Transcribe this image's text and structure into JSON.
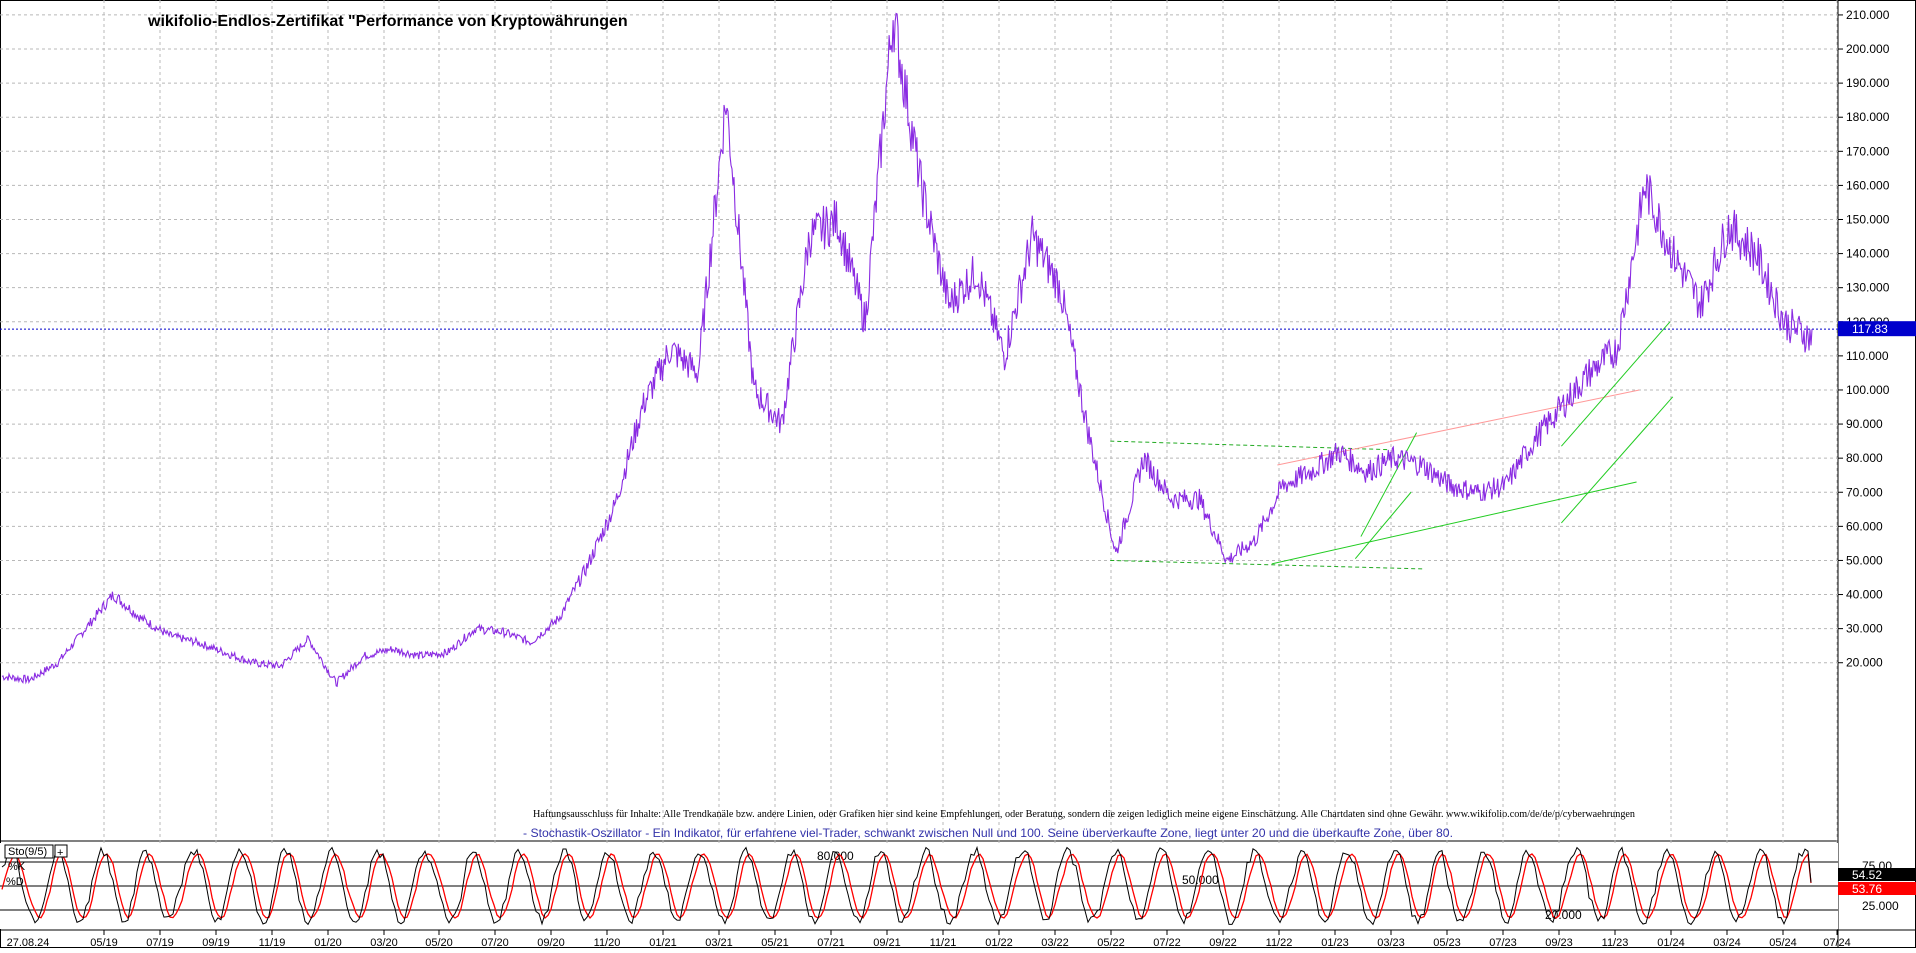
{
  "chart_data": [
    {
      "type": "line",
      "title": "wikifolio-Endlos-Zertifikat \"Performance von Kryptowährungen",
      "xlabel": "",
      "ylabel": "",
      "x_tick_labels": [
        "27.08.24",
        "05/19",
        "07/19",
        "09/19",
        "11/19",
        "01/20",
        "03/20",
        "05/20",
        "07/20",
        "09/20",
        "11/20",
        "01/21",
        "03/21",
        "05/21",
        "07/21",
        "09/21",
        "11/21",
        "01/22",
        "03/22",
        "05/22",
        "07/22",
        "09/22",
        "11/22",
        "01/23",
        "03/23",
        "05/23",
        "07/23",
        "09/23",
        "11/23",
        "01/24",
        "03/24",
        "05/24",
        "07/24"
      ],
      "y_tick_labels": [
        "20.000",
        "30.000",
        "40.000",
        "50.000",
        "60.000",
        "70.000",
        "80.000",
        "90.000",
        "100.000",
        "110.000",
        "120.000",
        "130.000",
        "140.000",
        "150.000",
        "160.000",
        "170.000",
        "180.000",
        "190.000",
        "200.000",
        "210.000"
      ],
      "ylim": [
        12,
        213.5
      ],
      "grid": true,
      "series_color": "#8a2be2",
      "current_value_label": "117.83",
      "current_value": 117.83,
      "x": [
        "03/19",
        "04/19",
        "05/19",
        "06/19",
        "07/19",
        "08/19",
        "09/19",
        "10/19",
        "11/19",
        "12/19",
        "01/20",
        "02/20",
        "03/20",
        "04/20",
        "05/20",
        "06/20",
        "07/20",
        "08/20",
        "09/20",
        "10/20",
        "11/20",
        "12/20",
        "01/21",
        "02/21",
        "03/21",
        "04/21",
        "05/21",
        "06/21",
        "07/21",
        "08/21",
        "09/21",
        "10/21",
        "11/21",
        "12/21",
        "01/22",
        "02/22",
        "03/22",
        "04/22",
        "05/22",
        "06/22",
        "07/22",
        "08/22",
        "09/22",
        "10/22",
        "11/22",
        "12/22",
        "01/23",
        "02/23",
        "03/23",
        "04/23",
        "05/23",
        "06/23",
        "07/23",
        "08/23",
        "09/23",
        "10/23",
        "11/23",
        "12/23",
        "01/24",
        "02/24",
        "03/24",
        "04/24",
        "05/24",
        "06/24",
        "07/24",
        "08/24"
      ],
      "series": [
        {
          "values": [
            16,
            15,
            20,
            30,
            40,
            33,
            28,
            26,
            23,
            20,
            19,
            27,
            14,
            22,
            24,
            22,
            23,
            30,
            29,
            26,
            33,
            48,
            66,
            95,
            112,
            105,
            185,
            100,
            90,
            145,
            150,
            120,
            210,
            160,
            125,
            135,
            110,
            145,
            130,
            88,
            52,
            80,
            68,
            68,
            50,
            56,
            72,
            76,
            82,
            76,
            80,
            78,
            72,
            70,
            72,
            85,
            95,
            105,
            112,
            160,
            140,
            125,
            148,
            140,
            120,
            115
          ]
        }
      ],
      "trendlines": {
        "support_resistance_color": "#22aa22",
        "rising_color": "#22cc22",
        "red_line_color": "#ff9999"
      }
    },
    {
      "type": "line",
      "title": "",
      "indicator_label": "Sto(9/5)",
      "series": [
        {
          "name": "%K",
          "color": "#000000",
          "current": 54.52
        },
        {
          "name": "%D",
          "color": "#ff0000",
          "current": 53.76
        }
      ],
      "levels": [
        20,
        50,
        80
      ],
      "level_labels": [
        "20.000",
        "50.000",
        "80.000"
      ],
      "y_tick_labels": [
        "25.000",
        "75.00"
      ],
      "k_label": "54.52",
      "d_label": "53.76",
      "ylim": [
        0,
        100
      ]
    }
  ],
  "disclaimer": "Haftungsausschluss für Inhalte: Alle Trendkanäle bzw. andere Linien, oder Grafiken hier sind keine Empfehlungen, oder Beratung, sondern die zeigen lediglich meine eigene Einschätzung. Alle Chartdaten sind ohne Gewähr.  www.wikifolio.com/de/de/p/cyberwaehrungen",
  "stochastic_note": "- Stochastik-Oszillator - Ein Indikator, für erfahrene viel-Trader, schwankt zwischen Null und 100. Seine überverkaufte Zone, liegt unter 20 und die überkaufte Zone, über 80.",
  "colors": {
    "grid": "#b8b8b8",
    "price_badge": "#0000cc",
    "k_badge": "#000000",
    "d_badge": "#ff0000",
    "current_line": "#0000cc"
  }
}
